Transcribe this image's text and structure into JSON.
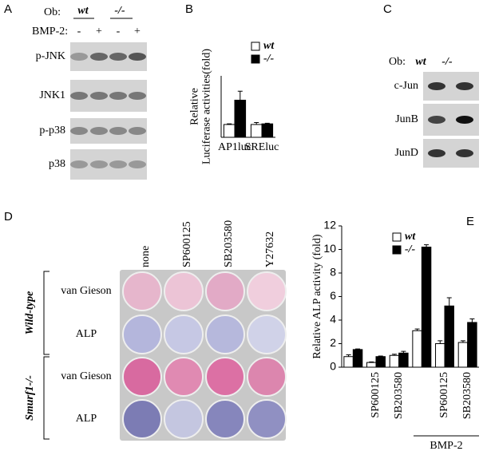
{
  "panel_labels": [
    "A",
    "B",
    "C",
    "D",
    "E"
  ],
  "panel_a": {
    "ob_label": "Ob:",
    "genotypes": [
      "wt",
      "-/-"
    ],
    "bmp_label": "BMP-2:",
    "treatments": [
      "-",
      "+",
      "-",
      "+"
    ],
    "rows": [
      "p-JNK",
      "JNK1",
      "p-p38",
      "p38"
    ]
  },
  "panel_c": {
    "ob_label": "Ob:",
    "genotypes": [
      "wt",
      "-/-"
    ],
    "rows": [
      "c-Jun",
      "JunB",
      "JunD"
    ]
  },
  "panel_d": {
    "columns": [
      "none",
      "SP600125",
      "SB203580",
      "Y27632"
    ],
    "groups": [
      {
        "label": "Wild-type",
        "rows": [
          "van Gieson",
          "ALP"
        ]
      },
      {
        "label": "Smurf1-/-",
        "rows": [
          "van Gieson",
          "ALP"
        ]
      }
    ]
  },
  "chart_data": [
    {
      "type": "bar",
      "y_label": [
        "Relative",
        "Luciferase activities(fold)"
      ],
      "categories": [
        "AP1luc",
        "SREluc"
      ],
      "ylim": [
        0,
        4.8
      ],
      "series": [
        {
          "name": "wt",
          "color": "#ffffff",
          "values": [
            1.0,
            1.0
          ],
          "errors": [
            0.05,
            0.15
          ]
        },
        {
          "name": "-/-",
          "color": "#000000",
          "values": [
            2.9,
            1.05
          ],
          "errors": [
            0.7,
            0.05
          ]
        }
      ]
    },
    {
      "type": "bar",
      "y_label": [
        "Relative ALP activity (fold)"
      ],
      "categories": [
        null,
        "SP600125",
        "SB203580",
        null,
        "SP600125",
        "SB203580"
      ],
      "group_label": "BMP-2",
      "ylim": [
        0,
        12
      ],
      "yticks": [
        0,
        2,
        4,
        6,
        8,
        10,
        12
      ],
      "series": [
        {
          "name": "wt",
          "color": "#ffffff",
          "values": [
            0.9,
            0.4,
            1.0,
            3.1,
            2.0,
            2.1
          ],
          "errors": [
            0.15,
            0.05,
            0.1,
            0.15,
            0.25,
            0.15
          ]
        },
        {
          "name": "-/-",
          "color": "#000000",
          "values": [
            1.5,
            0.9,
            1.2,
            10.2,
            5.2,
            3.8
          ],
          "errors": [
            0.05,
            0.05,
            0.15,
            0.2,
            0.7,
            0.3
          ]
        }
      ]
    }
  ]
}
